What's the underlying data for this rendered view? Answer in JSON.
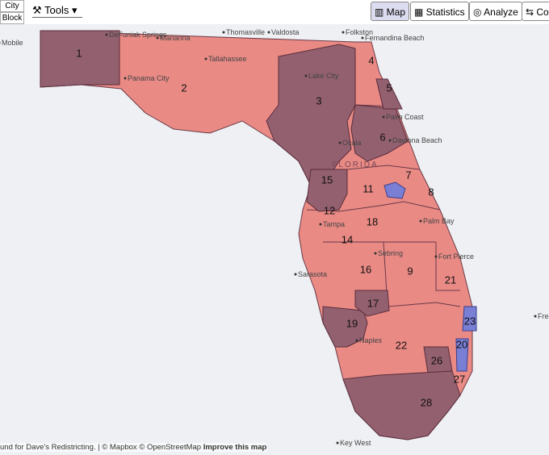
{
  "toolbar": {
    "city": "City",
    "block": "Block",
    "tools": "Tools",
    "buttons": [
      "Map",
      "Statistics",
      "Analyze",
      "Co"
    ]
  },
  "state_label": "FLORIDA",
  "places": [
    "Mobile",
    "DeFuniak Springs",
    "Marianna",
    "Thomasville",
    "Valdosta",
    "Folkston",
    "Fernandina Beach",
    "Tallahassee",
    "Panama City",
    "Lake City",
    "Palm Coast",
    "Ocala",
    "Daytona Beach",
    "Palm Bay",
    "Tampa",
    "Sebring",
    "Fort Pierce",
    "Sarasota",
    "Naples",
    "Key West",
    "Free"
  ],
  "districts": [
    "1",
    "2",
    "3",
    "4",
    "5",
    "6",
    "7",
    "8",
    "9",
    "11",
    "12",
    "14",
    "15",
    "16",
    "17",
    "18",
    "19",
    "20",
    "21",
    "22",
    "23",
    "26",
    "27",
    "28"
  ],
  "attribution": "und for Dave's Redistricting. | © Mapbox © OpenStreetMap",
  "attribution_link": "Improve this map"
}
